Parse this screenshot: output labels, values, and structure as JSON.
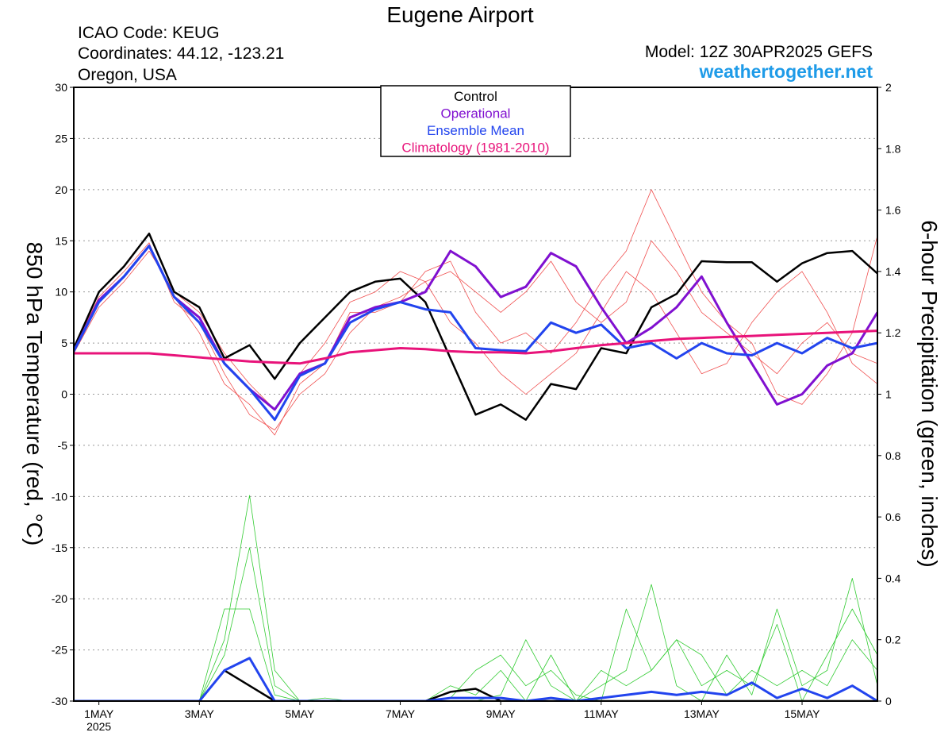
{
  "chart_data": {
    "type": "line",
    "title": "Eugene Airport",
    "info_lines": [
      "ICAO Code: KEUG",
      "Coordinates: 44.12, -123.21",
      "Oregon, USA"
    ],
    "model_label": "Model: 12Z 30APR2025 GEFS",
    "site_label": "weathertogether.net",
    "y_label": "850 hPa Temperature (red, °C)",
    "y2_label": "6-hour Precipitation (green, inches)",
    "x_year_label": "2025",
    "xlim": [
      -0.5,
      15.5
    ],
    "xticks": [
      {
        "value": 0,
        "label": "1MAY"
      },
      {
        "value": 2,
        "label": "3MAY"
      },
      {
        "value": 4,
        "label": "5MAY"
      },
      {
        "value": 6,
        "label": "7MAY"
      },
      {
        "value": 8,
        "label": "9MAY"
      },
      {
        "value": 10,
        "label": "11MAY"
      },
      {
        "value": 12,
        "label": "13MAY"
      },
      {
        "value": 14,
        "label": "15MAY"
      }
    ],
    "ylim": [
      -30,
      30
    ],
    "yticks": [
      -30,
      -25,
      -20,
      -15,
      -10,
      -5,
      0,
      5,
      10,
      15,
      20,
      25,
      30
    ],
    "y2lim": [
      0,
      2
    ],
    "y2ticks": [
      0,
      0.2,
      0.4,
      0.6,
      0.8,
      1,
      1.2,
      1.4,
      1.6,
      1.8,
      2
    ],
    "grid": true,
    "legend": "top",
    "x": [
      -0.5,
      0,
      0.5,
      1,
      1.5,
      2,
      2.5,
      3,
      3.5,
      4,
      4.5,
      5,
      5.5,
      6,
      6.5,
      7,
      7.5,
      8,
      8.5,
      9,
      9.5,
      10,
      10.5,
      11,
      11.5,
      12,
      12.5,
      13,
      13.5,
      14,
      14.5,
      15,
      15.5
    ],
    "series": [
      {
        "color": "#33cc33",
        "line_width": 0.8,
        "axis": "y2",
        "values": [
          0,
          0,
          0,
          0,
          0,
          0,
          0.2,
          0.67,
          0.1,
          0,
          0.01,
          0,
          0,
          0,
          0,
          0,
          0,
          0.02,
          0.2,
          0.05,
          0,
          0.05,
          0.1,
          0.38,
          0.05,
          0,
          0.15,
          0.02,
          0.3,
          0.05,
          0.1,
          0.4,
          0.05
        ]
      },
      {
        "color": "#33cc33",
        "line_width": 0.8,
        "axis": "y2",
        "values": [
          0,
          0,
          0,
          0,
          0,
          0,
          0.3,
          0.3,
          0.02,
          0,
          0,
          0,
          0,
          0,
          0,
          0.01,
          0.1,
          0.15,
          0.05,
          0.1,
          0.02,
          0,
          0.3,
          0.1,
          0.2,
          0.05,
          0.1,
          0.05,
          0.25,
          0,
          0.15,
          0.3,
          0.15
        ]
      },
      {
        "color": "#33cc33",
        "line_width": 0.8,
        "axis": "y2",
        "values": [
          0,
          0,
          0,
          0,
          0,
          0,
          0.15,
          0.5,
          0.05,
          0,
          0,
          0,
          0,
          0,
          0,
          0.05,
          0.02,
          0.1,
          0,
          0.15,
          0,
          0.1,
          0.05,
          0.1,
          0.2,
          0.15,
          0.02,
          0.1,
          0.05,
          0.1,
          0.05,
          0.2,
          0.1
        ]
      },
      {
        "color": "#f05050",
        "line_width": 0.8,
        "values": [
          4.5,
          9.5,
          12,
          14.8,
          9,
          7,
          2,
          -2,
          -3.5,
          0,
          2,
          6,
          8.5,
          9.5,
          11,
          12,
          10,
          8,
          10,
          13,
          9,
          7,
          9,
          15,
          12,
          8,
          6,
          4,
          2,
          5,
          7,
          4,
          3
        ]
      },
      {
        "color": "#f05050",
        "line_width": 0.8,
        "values": [
          4,
          8.5,
          11,
          14,
          10,
          8,
          4,
          1,
          -1.5,
          2,
          5,
          9,
          10,
          12,
          11,
          7,
          5,
          2,
          0,
          2,
          4,
          8,
          12,
          10,
          6,
          2,
          3,
          7,
          10,
          12,
          8,
          3,
          1
        ]
      },
      {
        "color": "#f05050",
        "line_width": 0.8,
        "values": [
          4.2,
          9,
          11.5,
          14.5,
          9.5,
          6,
          1,
          -1,
          -4,
          1,
          3,
          8,
          8,
          9,
          12,
          13,
          8,
          5,
          6,
          4,
          7,
          11,
          14,
          20,
          15,
          10,
          7,
          5,
          0,
          -1,
          2,
          6,
          15.5
        ]
      },
      {
        "color": "#000000",
        "line_width": 2.5,
        "axis": "y2",
        "values": [
          0,
          0,
          0,
          0,
          0,
          0,
          0.1,
          0.05,
          0,
          0,
          0,
          0,
          0,
          0,
          0,
          0.03,
          0.04,
          0,
          0,
          0,
          0,
          0,
          0,
          0,
          0,
          0,
          0,
          0,
          0,
          0,
          0,
          0,
          0
        ]
      },
      {
        "color": "#2244ee",
        "line_width": 3,
        "axis": "y2",
        "values": [
          0,
          0,
          0,
          0,
          0,
          0,
          0.1,
          0.14,
          0,
          0,
          0,
          0,
          0,
          0,
          0,
          0.01,
          0.01,
          0.01,
          0,
          0.01,
          0,
          0.01,
          0.02,
          0.03,
          0.02,
          0.03,
          0.02,
          0.06,
          0.01,
          0.04,
          0.01,
          0.05,
          0
        ]
      },
      {
        "name": "Control",
        "color": "#000000",
        "line_width": 2.5,
        "values": [
          4.5,
          10,
          12.5,
          15.7,
          10,
          8.5,
          3.5,
          4.8,
          1.5,
          5,
          7.5,
          10,
          11,
          11.3,
          9,
          3.5,
          -2,
          -1,
          -2.5,
          1,
          0.5,
          4.5,
          4,
          8.5,
          9.8,
          13,
          12.9,
          12.9,
          11,
          12.8,
          13.8,
          14,
          11.8
        ]
      },
      {
        "name": "Operational",
        "color": "#8010d0",
        "line_width": 3,
        "values": [
          4.2,
          9.2,
          11.5,
          14.5,
          9.5,
          7.5,
          3,
          0.5,
          -1.5,
          2,
          3,
          7.5,
          8.5,
          9,
          10,
          14,
          12.5,
          9.5,
          10.5,
          13.8,
          12.5,
          8.5,
          5,
          6.5,
          8.5,
          11.5,
          7,
          3,
          -1,
          0,
          2.8,
          4,
          8
        ]
      },
      {
        "name": "Ensemble Mean",
        "color": "#2244ee",
        "line_width": 3,
        "values": [
          4.2,
          9,
          11.5,
          14.5,
          9.5,
          7,
          3,
          0.5,
          -2.5,
          1.8,
          3,
          7,
          8.3,
          9,
          8.3,
          8,
          4.5,
          4.3,
          4.2,
          7,
          6,
          6.8,
          4.5,
          5,
          3.5,
          5,
          4,
          3.8,
          5,
          4,
          5.5,
          4.5,
          5
        ]
      },
      {
        "name": "Climatology (1981-2010)",
        "color": "#e8137a",
        "line_width": 3,
        "values": [
          4,
          4,
          4,
          4,
          3.8,
          3.6,
          3.4,
          3.2,
          3.1,
          3,
          3.5,
          4.1,
          4.3,
          4.5,
          4.4,
          4.2,
          4.1,
          4.1,
          4,
          4.2,
          4.5,
          4.8,
          5,
          5.2,
          5.4,
          5.5,
          5.6,
          5.7,
          5.8,
          5.9,
          6,
          6.1,
          6.2
        ]
      }
    ]
  }
}
